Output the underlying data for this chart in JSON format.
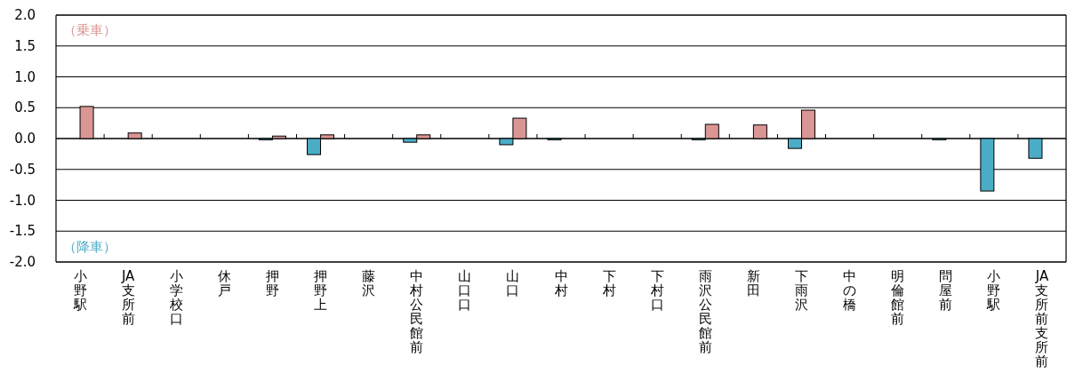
{
  "chart_data": {
    "type": "bar",
    "categories": [
      "小野駅",
      "JA支所前",
      "小学校口",
      "休戸",
      "押野",
      "押野上",
      "藤沢",
      "中村公民館前",
      "山口口",
      "山口",
      "中村",
      "下村",
      "下村口",
      "雨沢公民館前",
      "新田",
      "下雨沢",
      "中の橋",
      "明倫館前",
      "問屋前",
      "小野駅",
      "JA支所前支所前"
    ],
    "series": [
      {
        "name": "（降車）",
        "color": "#4bacc6",
        "values": [
          0,
          0,
          0,
          0,
          -0.02,
          -0.26,
          0,
          -0.06,
          0,
          -0.1,
          -0.02,
          0,
          0,
          -0.02,
          0,
          -0.16,
          0,
          0,
          -0.02,
          -0.85,
          -0.32
        ]
      },
      {
        "name": "（乗車）",
        "color": "#d99694",
        "values": [
          0.52,
          0.09,
          0,
          0,
          0.04,
          0.06,
          0,
          0.06,
          0,
          0.33,
          0,
          0,
          0,
          0.23,
          0.22,
          0.46,
          0,
          0,
          0,
          0,
          0
        ]
      }
    ],
    "ylim": [
      -2.0,
      2.0
    ],
    "yticks": [
      {
        "value": -2,
        "label": "-2.0"
      },
      {
        "value": -1.5,
        "label": "-1.5"
      },
      {
        "value": -1,
        "label": "-1.0"
      },
      {
        "value": -0.5,
        "label": "-0.5"
      },
      {
        "value": 0,
        "label": "0.0"
      },
      {
        "value": 0.5,
        "label": "0.5"
      },
      {
        "value": 1,
        "label": "1.0"
      },
      {
        "value": 1.5,
        "label": "1.5"
      },
      {
        "value": 2,
        "label": "2.0"
      }
    ],
    "grid": "y"
  }
}
